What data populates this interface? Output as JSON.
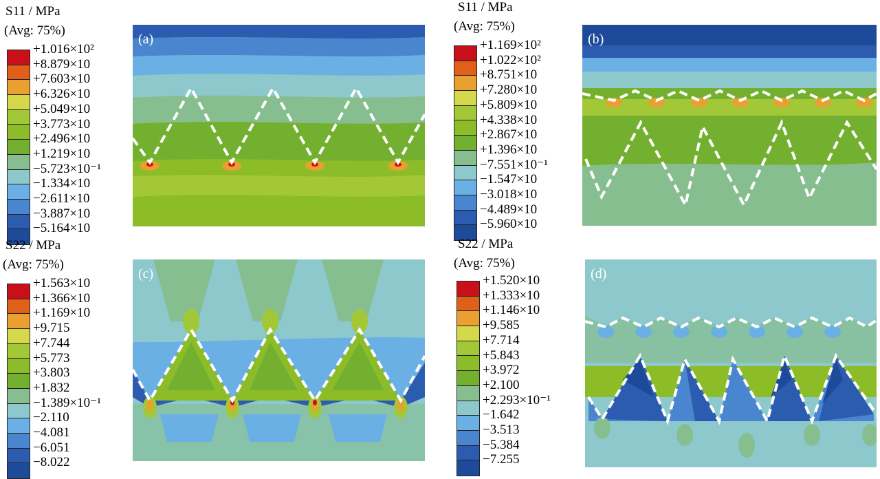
{
  "palette": [
    "#c8101a",
    "#e0601a",
    "#eaa030",
    "#d4d84a",
    "#a2c838",
    "#8cbc28",
    "#74b030",
    "#86be90",
    "#8cc8cc",
    "#6ab0e4",
    "#4a86d0",
    "#2c5cb0",
    "#1e4a9a"
  ],
  "panels": [
    {
      "id": "a",
      "label": "(a)",
      "legend_title_1": "S11 / MPa",
      "legend_title_2": "(Avg: 75%)",
      "legend_values": [
        "+1.016×10²",
        "+8.879×10",
        "+7.603×10",
        "+6.326×10",
        "+5.049×10",
        "+3.773×10",
        "+2.496×10",
        "+1.219×10",
        "−5.723×10⁻¹",
        "−1.334×10",
        "−2.611×10",
        "−3.887×10",
        "−5.164×10"
      ]
    },
    {
      "id": "b",
      "label": "(b)",
      "legend_title_1": "S11 / MPa",
      "legend_title_2": "(Avg: 75%)",
      "legend_values": [
        "+1.169×10²",
        "+1.022×10²",
        "+8.751×10",
        "+7.280×10",
        "+5.809×10",
        "+4.338×10",
        "+2.867×10",
        "+1.396×10",
        "−7.551×10⁻¹",
        "−1.547×10",
        "−3.018×10",
        "−4.489×10",
        "−5.960×10"
      ]
    },
    {
      "id": "c",
      "label": "(c)",
      "legend_title_1": "S22 / MPa",
      "legend_title_2": "(Avg: 75%)",
      "legend_values": [
        "+1.563×10",
        "+1.366×10",
        "+1.169×10",
        "+9.715",
        "+7.744",
        "+5.773",
        "+3.803",
        "+1.832",
        "−1.389×10⁻¹",
        "−2.110",
        "−4.081",
        "−6.051",
        "−8.022"
      ]
    },
    {
      "id": "d",
      "label": "(d)",
      "legend_title_1": "S22 / MPa",
      "legend_title_2": "(Avg: 75%)",
      "legend_values": [
        "+1.520×10",
        "+1.333×10",
        "+1.146×10",
        "+9.585",
        "+7.714",
        "+5.843",
        "+3.972",
        "+2.100",
        "+2.293×10⁻¹",
        "−1.642",
        "−3.513",
        "−5.384",
        "−7.255"
      ]
    }
  ]
}
